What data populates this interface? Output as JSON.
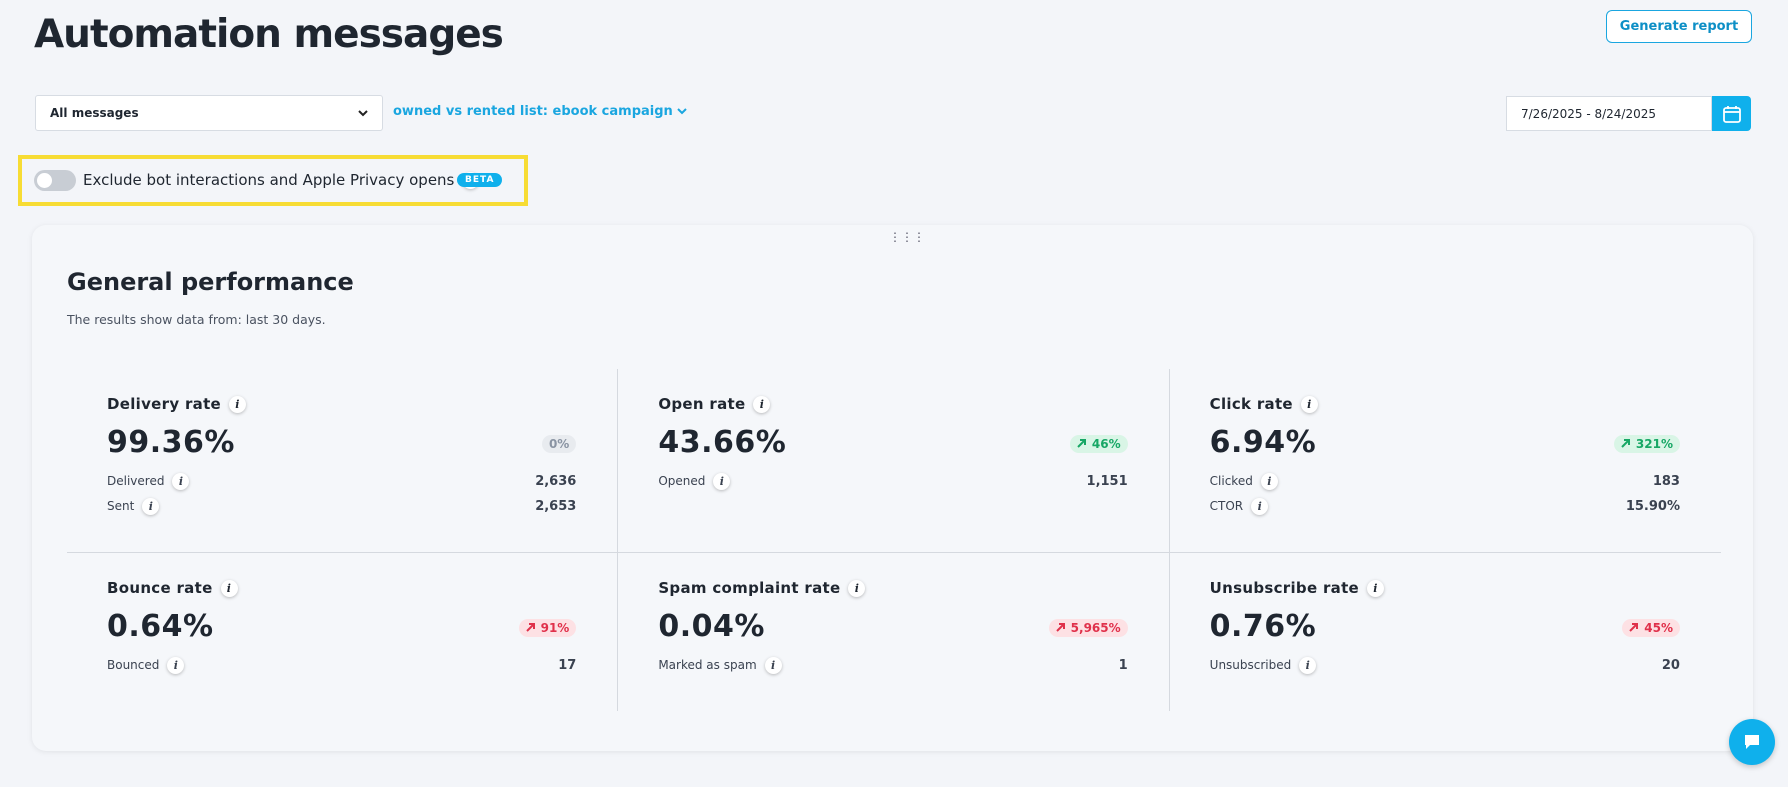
{
  "header": {
    "title": "Automation messages",
    "button": "Generate report"
  },
  "filters": {
    "messages": "All messages",
    "list": "owned vs rented list: ebook campaign",
    "date_range": "7/26/2025 - 8/24/2025"
  },
  "toggle": {
    "label": "Exclude bot interactions and Apple Privacy opens",
    "badge": "BETA"
  },
  "panel": {
    "title": "General performance",
    "subtitle": "The results show data from: last 30 days.",
    "cards": [
      {
        "title": "Delivery rate",
        "value": "99.36%",
        "change": "0%",
        "badge_color": "#8a94a3",
        "badge_bg": "#e8ebef",
        "arrow": false,
        "rows": [
          {
            "label": "Delivered",
            "value": "2,636"
          },
          {
            "label": "Sent",
            "value": "2,653"
          }
        ]
      },
      {
        "title": "Open rate",
        "value": "43.66%",
        "change": "46%",
        "badge_color": "#17a765",
        "badge_bg": "#d9f5e6",
        "arrow": true,
        "rows": [
          {
            "label": "Opened",
            "value": "1,151"
          }
        ]
      },
      {
        "title": "Click rate",
        "value": "6.94%",
        "change": "321%",
        "badge_color": "#17a765",
        "badge_bg": "#d9f5e6",
        "arrow": true,
        "rows": [
          {
            "label": "Clicked",
            "value": "183"
          },
          {
            "label": "CTOR",
            "value": "15.90%"
          }
        ]
      },
      {
        "title": "Bounce rate",
        "value": "0.64%",
        "change": "91%",
        "badge_color": "#e0314b",
        "badge_bg": "#fde1e4",
        "arrow": true,
        "rows": [
          {
            "label": "Bounced",
            "value": "17"
          }
        ]
      },
      {
        "title": "Spam complaint rate",
        "value": "0.04%",
        "change": "5,965%",
        "badge_color": "#e0314b",
        "badge_bg": "#fde1e4",
        "arrow": true,
        "rows": [
          {
            "label": "Marked as spam",
            "value": "1"
          }
        ]
      },
      {
        "title": "Unsubscribe rate",
        "value": "0.76%",
        "change": "45%",
        "badge_color": "#e0314b",
        "badge_bg": "#fde1e4",
        "arrow": true,
        "rows": [
          {
            "label": "Unsubscribed",
            "value": "20"
          }
        ]
      }
    ]
  }
}
